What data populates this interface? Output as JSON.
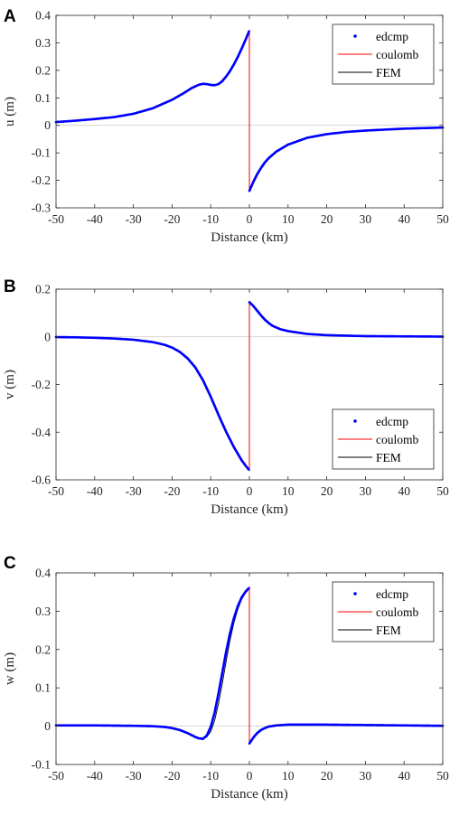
{
  "colors": {
    "edcmp": "#0000ff",
    "coulomb": "#ff0000",
    "fem": "#000000",
    "axis": "#262626"
  },
  "chart_data": [
    {
      "panel_label": "A",
      "type": "line",
      "xlabel": "Distance (km)",
      "ylabel": "u (m)",
      "xlim": [
        -50,
        50
      ],
      "ylim": [
        -0.3,
        0.4
      ],
      "xticks": [
        -50,
        -40,
        -30,
        -20,
        -10,
        0,
        10,
        20,
        30,
        40,
        50
      ],
      "xtick_labels": [
        "-50",
        "-40",
        "-30",
        "-20",
        "-10",
        "0",
        "10",
        "20",
        "30",
        "40",
        "50"
      ],
      "yticks": [
        -0.3,
        -0.2,
        -0.1,
        0,
        0.1,
        0.2,
        0.3,
        0.4
      ],
      "ytick_labels": [
        "-0.3",
        "-0.2",
        "-0.1",
        "0",
        "0.1",
        "0.2",
        "0.3",
        "0.4"
      ],
      "grid": false,
      "legend_position": "top-right",
      "series": [
        {
          "name": "edcmp",
          "style": "dots",
          "x": [
            -50,
            -45,
            -40,
            -35,
            -30,
            -25,
            -20,
            -17,
            -15,
            -13,
            -12,
            -11,
            -10,
            -9,
            -8,
            -7,
            -6,
            -5,
            -4,
            -3,
            -2,
            -1,
            0,
            0.01,
            1,
            2,
            3,
            4,
            5,
            7,
            10,
            15,
            20,
            25,
            30,
            40,
            50
          ],
          "y": [
            0.012,
            0.017,
            0.023,
            0.03,
            0.042,
            0.062,
            0.093,
            0.117,
            0.135,
            0.148,
            0.151,
            0.15,
            0.147,
            0.146,
            0.15,
            0.161,
            0.178,
            0.198,
            0.222,
            0.249,
            0.279,
            0.311,
            0.345,
            -0.238,
            -0.206,
            -0.178,
            -0.155,
            -0.135,
            -0.119,
            -0.095,
            -0.07,
            -0.045,
            -0.032,
            -0.024,
            -0.019,
            -0.012,
            -0.008
          ]
        },
        {
          "name": "coulomb",
          "style": "line",
          "x": [
            -50,
            -45,
            -40,
            -35,
            -30,
            -25,
            -20,
            -17,
            -15,
            -13,
            -12,
            -11,
            -10,
            -9,
            -8,
            -7,
            -6,
            -5,
            -4,
            -3,
            -2,
            -1,
            0,
            0.01,
            1,
            2,
            3,
            4,
            5,
            7,
            10,
            15,
            20,
            25,
            30,
            40,
            50
          ],
          "y": [
            0.012,
            0.017,
            0.023,
            0.03,
            0.042,
            0.062,
            0.093,
            0.117,
            0.135,
            0.148,
            0.151,
            0.15,
            0.147,
            0.146,
            0.15,
            0.161,
            0.178,
            0.198,
            0.222,
            0.249,
            0.279,
            0.311,
            0.345,
            -0.238,
            -0.206,
            -0.178,
            -0.155,
            -0.135,
            -0.119,
            -0.095,
            -0.07,
            -0.045,
            -0.032,
            -0.024,
            -0.019,
            -0.012,
            -0.008
          ]
        },
        {
          "name": "FEM",
          "style": "line",
          "x": [
            -50,
            -45,
            -40,
            -35,
            -30,
            -25,
            -20,
            -17,
            -15,
            -13,
            -12,
            -11,
            -10,
            -9,
            -8,
            -7,
            -6,
            -5,
            -4,
            -3,
            -2,
            -1,
            0,
            0.01,
            1,
            2,
            3,
            4,
            5,
            7,
            10,
            15,
            20,
            25,
            30,
            40,
            50
          ],
          "y": [
            0.013,
            0.018,
            0.024,
            0.031,
            0.043,
            0.063,
            0.094,
            0.118,
            0.136,
            0.149,
            0.151,
            0.15,
            0.147,
            0.145,
            0.149,
            0.16,
            0.177,
            0.197,
            0.221,
            0.247,
            0.277,
            0.309,
            0.34,
            -0.232,
            -0.201,
            -0.174,
            -0.151,
            -0.132,
            -0.117,
            -0.094,
            -0.069,
            -0.045,
            -0.032,
            -0.024,
            -0.019,
            -0.012,
            -0.008
          ]
        }
      ]
    },
    {
      "panel_label": "B",
      "type": "line",
      "xlabel": "Distance (km)",
      "ylabel": "v (m)",
      "xlim": [
        -50,
        50
      ],
      "ylim": [
        -0.6,
        0.2
      ],
      "xticks": [
        -50,
        -40,
        -30,
        -20,
        -10,
        0,
        10,
        20,
        30,
        40,
        50
      ],
      "xtick_labels": [
        "-50",
        "-40",
        "-30",
        "-20",
        "-10",
        "0",
        "10",
        "20",
        "30",
        "40",
        "50"
      ],
      "yticks": [
        -0.6,
        -0.4,
        -0.2,
        0,
        0.2
      ],
      "ytick_labels": [
        "-0.6",
        "-0.4",
        "-0.2",
        "0",
        "0.2"
      ],
      "grid": false,
      "legend_position": "bottom-right",
      "series": [
        {
          "name": "edcmp",
          "style": "dots",
          "x": [
            -50,
            -45,
            -40,
            -35,
            -30,
            -25,
            -22,
            -20,
            -18,
            -16,
            -14,
            -12,
            -10,
            -8,
            -6,
            -4,
            -2,
            -1,
            0,
            0.01,
            1,
            2,
            3,
            4,
            5,
            6,
            8,
            10,
            15,
            20,
            30,
            40,
            50
          ],
          "y": [
            -0.001,
            -0.002,
            -0.004,
            -0.007,
            -0.012,
            -0.022,
            -0.033,
            -0.045,
            -0.063,
            -0.09,
            -0.128,
            -0.182,
            -0.251,
            -0.327,
            -0.399,
            -0.463,
            -0.518,
            -0.54,
            -0.56,
            0.145,
            0.13,
            0.11,
            0.09,
            0.072,
            0.058,
            0.046,
            0.032,
            0.024,
            0.012,
            0.007,
            0.003,
            0.002,
            0.001
          ]
        },
        {
          "name": "coulomb",
          "style": "line",
          "x": [
            -50,
            -45,
            -40,
            -35,
            -30,
            -25,
            -22,
            -20,
            -18,
            -16,
            -14,
            -12,
            -10,
            -8,
            -6,
            -4,
            -2,
            -1,
            0,
            0.01,
            1,
            2,
            3,
            4,
            5,
            6,
            8,
            10,
            15,
            20,
            30,
            40,
            50
          ],
          "y": [
            -0.001,
            -0.002,
            -0.004,
            -0.007,
            -0.012,
            -0.022,
            -0.033,
            -0.045,
            -0.063,
            -0.09,
            -0.128,
            -0.182,
            -0.251,
            -0.327,
            -0.399,
            -0.463,
            -0.518,
            -0.54,
            -0.56,
            0.145,
            0.13,
            0.11,
            0.09,
            0.072,
            0.058,
            0.046,
            0.032,
            0.024,
            0.012,
            0.007,
            0.003,
            0.002,
            0.001
          ]
        },
        {
          "name": "FEM",
          "style": "line",
          "x": [
            -50,
            -45,
            -40,
            -35,
            -30,
            -25,
            -22,
            -20,
            -18,
            -16,
            -14,
            -12,
            -10,
            -8,
            -6,
            -4,
            -2,
            -1,
            0,
            0.01,
            1,
            2,
            3,
            4,
            5,
            6,
            8,
            10,
            15,
            20,
            30,
            40,
            50
          ],
          "y": [
            -0.001,
            -0.002,
            -0.004,
            -0.007,
            -0.012,
            -0.022,
            -0.033,
            -0.046,
            -0.065,
            -0.093,
            -0.132,
            -0.187,
            -0.256,
            -0.331,
            -0.402,
            -0.465,
            -0.519,
            -0.541,
            -0.558,
            0.148,
            0.133,
            0.112,
            0.092,
            0.074,
            0.06,
            0.048,
            0.034,
            0.025,
            0.013,
            0.008,
            0.004,
            0.002,
            0.001
          ]
        }
      ]
    },
    {
      "panel_label": "C",
      "type": "line",
      "xlabel": "Distance (km)",
      "ylabel": "w (m)",
      "xlim": [
        -50,
        50
      ],
      "ylim": [
        -0.1,
        0.4
      ],
      "xticks": [
        -50,
        -40,
        -30,
        -20,
        -10,
        0,
        10,
        20,
        30,
        40,
        50
      ],
      "xtick_labels": [
        "-50",
        "-40",
        "-30",
        "-20",
        "-10",
        "0",
        "10",
        "20",
        "30",
        "40",
        "50"
      ],
      "yticks": [
        -0.1,
        0,
        0.1,
        0.2,
        0.3,
        0.4
      ],
      "ytick_labels": [
        "-0.1",
        "0",
        "0.1",
        "0.2",
        "0.3",
        "0.4"
      ],
      "grid": false,
      "legend_position": "top-right",
      "series": [
        {
          "name": "edcmp",
          "style": "dots",
          "x": [
            -50,
            -40,
            -30,
            -25,
            -22,
            -20,
            -18,
            -16,
            -14,
            -13,
            -12,
            -11,
            -10,
            -9,
            -8,
            -7,
            -6,
            -5,
            -4,
            -3,
            -2,
            -1,
            0,
            0.01,
            1,
            2,
            3,
            4,
            5,
            7,
            10,
            15,
            20,
            30,
            40,
            50
          ],
          "y": [
            0.002,
            0.002,
            0.001,
            0.0,
            -0.002,
            -0.005,
            -0.01,
            -0.018,
            -0.028,
            -0.032,
            -0.033,
            -0.024,
            -0.002,
            0.035,
            0.085,
            0.14,
            0.195,
            0.243,
            0.282,
            0.313,
            0.336,
            0.351,
            0.362,
            -0.045,
            -0.03,
            -0.018,
            -0.01,
            -0.005,
            -0.001,
            0.002,
            0.004,
            0.004,
            0.004,
            0.003,
            0.002,
            0.001
          ]
        },
        {
          "name": "coulomb",
          "style": "line",
          "x": [
            -50,
            -40,
            -30,
            -25,
            -22,
            -20,
            -18,
            -16,
            -14,
            -13,
            -12,
            -11,
            -10,
            -9,
            -8,
            -7,
            -6,
            -5,
            -4,
            -3,
            -2,
            -1,
            0,
            0.01,
            1,
            2,
            3,
            4,
            5,
            7,
            10,
            15,
            20,
            30,
            40,
            50
          ],
          "y": [
            0.002,
            0.002,
            0.001,
            0.0,
            -0.002,
            -0.005,
            -0.01,
            -0.018,
            -0.028,
            -0.032,
            -0.033,
            -0.024,
            -0.002,
            0.035,
            0.085,
            0.14,
            0.195,
            0.243,
            0.282,
            0.313,
            0.336,
            0.351,
            0.362,
            -0.045,
            -0.03,
            -0.018,
            -0.01,
            -0.005,
            -0.001,
            0.002,
            0.004,
            0.004,
            0.004,
            0.003,
            0.002,
            0.001
          ]
        },
        {
          "name": "FEM",
          "style": "line",
          "x": [
            -50,
            -40,
            -30,
            -25,
            -22,
            -20,
            -18,
            -16,
            -14,
            -13,
            -12,
            -11,
            -10,
            -9,
            -8,
            -7,
            -6,
            -5,
            -4,
            -3,
            -2,
            -1,
            0,
            0.01,
            1,
            2,
            3,
            4,
            5,
            7,
            10,
            15,
            20,
            30,
            40,
            50
          ],
          "y": [
            0.002,
            0.002,
            0.001,
            0.0,
            -0.002,
            -0.005,
            -0.01,
            -0.017,
            -0.027,
            -0.031,
            -0.033,
            -0.028,
            -0.014,
            0.014,
            0.058,
            0.112,
            0.17,
            0.225,
            0.27,
            0.305,
            0.331,
            0.348,
            0.359,
            -0.043,
            -0.029,
            -0.017,
            -0.009,
            -0.004,
            -0.001,
            0.002,
            0.004,
            0.004,
            0.004,
            0.003,
            0.002,
            0.001
          ]
        }
      ]
    }
  ]
}
